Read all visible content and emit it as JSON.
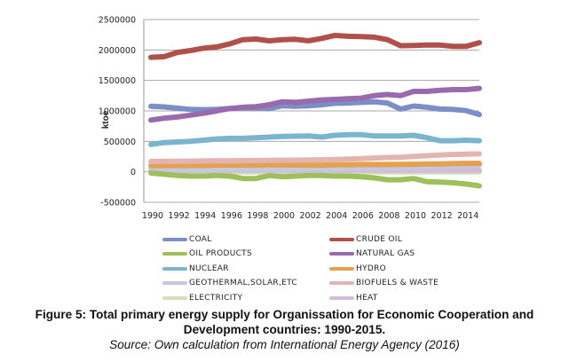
{
  "chart_data": {
    "type": "line",
    "title": "",
    "xlabel": "",
    "ylabel": "ktoe",
    "ylim": [
      -500000,
      2500000
    ],
    "yticks": [
      "2500000",
      "2000000",
      "1500000",
      "1000000",
      "500000",
      "0",
      "-500000"
    ],
    "ytick_values": [
      2500000,
      2000000,
      1500000,
      1000000,
      500000,
      0,
      -500000
    ],
    "xticks": [
      "1990",
      "1992",
      "1994",
      "1996",
      "1998",
      "2000",
      "2002",
      "2004",
      "2006",
      "2008",
      "2010",
      "2012",
      "2014"
    ],
    "x": [
      1990,
      1991,
      1992,
      1993,
      1994,
      1995,
      1996,
      1997,
      1998,
      1999,
      2000,
      2001,
      2002,
      2003,
      2004,
      2005,
      2006,
      2007,
      2008,
      2009,
      2010,
      2011,
      2012,
      2013,
      2014,
      2015
    ],
    "grid": true,
    "legend_position": "bottom",
    "series": [
      {
        "name": "COAL",
        "color": "#7B8EC8",
        "values": [
          1075000,
          1065000,
          1045000,
          1025000,
          1020000,
          1025000,
          1040000,
          1050000,
          1050000,
          1040000,
          1085000,
          1075000,
          1085000,
          1100000,
          1125000,
          1130000,
          1140000,
          1150000,
          1130000,
          1030000,
          1080000,
          1060000,
          1030000,
          1025000,
          1005000,
          940000
        ]
      },
      {
        "name": "CRUDE OIL",
        "color": "#B0504B",
        "values": [
          1880000,
          1890000,
          1960000,
          1990000,
          2030000,
          2050000,
          2100000,
          2170000,
          2180000,
          2150000,
          2170000,
          2175000,
          2150000,
          2190000,
          2240000,
          2225000,
          2220000,
          2210000,
          2170000,
          2070000,
          2075000,
          2080000,
          2080000,
          2060000,
          2060000,
          2120000
        ]
      },
      {
        "name": "OIL PRODUCTS",
        "color": "#9DC05A",
        "values": [
          -20000,
          -40000,
          -60000,
          -70000,
          -70000,
          -60000,
          -70000,
          -110000,
          -110000,
          -60000,
          -80000,
          -70000,
          -60000,
          -60000,
          -70000,
          -70000,
          -80000,
          -100000,
          -130000,
          -130000,
          -110000,
          -160000,
          -170000,
          -180000,
          -200000,
          -230000
        ]
      },
      {
        "name": "NATURAL GAS",
        "color": "#9A6AAF",
        "values": [
          850000,
          880000,
          900000,
          930000,
          960000,
          1000000,
          1040000,
          1060000,
          1070000,
          1100000,
          1150000,
          1140000,
          1160000,
          1180000,
          1190000,
          1200000,
          1210000,
          1250000,
          1270000,
          1250000,
          1320000,
          1320000,
          1340000,
          1350000,
          1350000,
          1370000
        ]
      },
      {
        "name": "NUCLEAR",
        "color": "#7AB4CF",
        "values": [
          450000,
          480000,
          490000,
          500000,
          520000,
          540000,
          550000,
          550000,
          560000,
          570000,
          580000,
          585000,
          590000,
          570000,
          600000,
          610000,
          610000,
          590000,
          590000,
          590000,
          600000,
          560000,
          510000,
          510000,
          520000,
          510000
        ]
      },
      {
        "name": "HYDRO",
        "color": "#E5A24C",
        "values": [
          100000,
          105000,
          100000,
          105000,
          105000,
          110000,
          110000,
          110000,
          110000,
          115000,
          115000,
          110000,
          110000,
          110000,
          115000,
          118000,
          120000,
          120000,
          120000,
          122000,
          125000,
          128000,
          130000,
          135000,
          140000,
          140000
        ]
      },
      {
        "name": "GEOTHERMAL,SOLAR,ETC",
        "color": "#C5C7E3",
        "values": [
          40000,
          40000,
          41000,
          42000,
          42000,
          43000,
          44000,
          45000,
          46000,
          47000,
          48000,
          49000,
          50000,
          52000,
          54000,
          56000,
          58000,
          62000,
          66000,
          70000,
          76000,
          84000,
          92000,
          100000,
          106000,
          112000
        ]
      },
      {
        "name": "BIOFUELS & WASTE",
        "color": "#E4B4B3",
        "values": [
          170000,
          172000,
          174000,
          176000,
          178000,
          180000,
          182000,
          184000,
          186000,
          188000,
          190000,
          192000,
          195000,
          198000,
          202000,
          210000,
          218000,
          226000,
          235000,
          240000,
          255000,
          265000,
          275000,
          285000,
          290000,
          295000
        ]
      },
      {
        "name": "ELECTRICITY",
        "color": "#CFE2B4",
        "values": [
          0,
          0,
          0,
          0,
          0,
          0,
          0,
          0,
          0,
          0,
          0,
          0,
          0,
          0,
          0,
          0,
          0,
          0,
          0,
          0,
          0,
          0,
          0,
          0,
          0,
          0
        ]
      },
      {
        "name": "HEAT",
        "color": "#D3BCDA",
        "values": [
          25000,
          25000,
          25000,
          25000,
          25000,
          25000,
          25000,
          25000,
          25000,
          25000,
          25000,
          25000,
          25000,
          25000,
          25000,
          25000,
          25000,
          25000,
          25000,
          25000,
          25000,
          25000,
          25000,
          25000,
          25000,
          25000
        ]
      }
    ]
  },
  "caption": {
    "title_line1": "Figure 5: Total primary energy supply for Organissation for Economic Cooperation and",
    "title_line2": "Development countries: 1990-2015.",
    "source": "Source: Own calculation from International Energy Agency (2016)"
  }
}
